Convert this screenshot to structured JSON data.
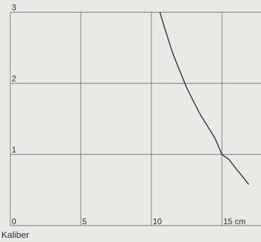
{
  "chart_data": {
    "type": "line",
    "title": "",
    "xlabel": "Kaliber",
    "ylabel": "",
    "xlim": [
      0,
      17
    ],
    "ylim": [
      0,
      3
    ],
    "grid": true,
    "x_ticks": [
      {
        "value": 0,
        "label": "0"
      },
      {
        "value": 5,
        "label": "5"
      },
      {
        "value": 10,
        "label": "10"
      },
      {
        "value": 15,
        "label": "15 cm"
      }
    ],
    "y_ticks": [
      {
        "value": 1,
        "label": "1"
      },
      {
        "value": 2,
        "label": "2"
      },
      {
        "value": 3,
        "label": "3"
      }
    ],
    "series": [
      {
        "x": [
          10.6,
          11.0,
          11.5,
          12.0,
          12.5,
          13.0,
          13.5,
          14.0,
          14.5,
          15.0,
          15.5,
          16.0,
          16.5,
          16.9
        ],
        "values": [
          3.0,
          2.74,
          2.43,
          2.18,
          1.94,
          1.74,
          1.55,
          1.39,
          1.23,
          1.0,
          0.93,
          0.8,
          0.68,
          0.58
        ]
      }
    ],
    "colors": {
      "line": "#2a2a2a",
      "grid": "#6e6e6e",
      "background": "#e9e9e6",
      "text": "#2b2b2b"
    }
  }
}
